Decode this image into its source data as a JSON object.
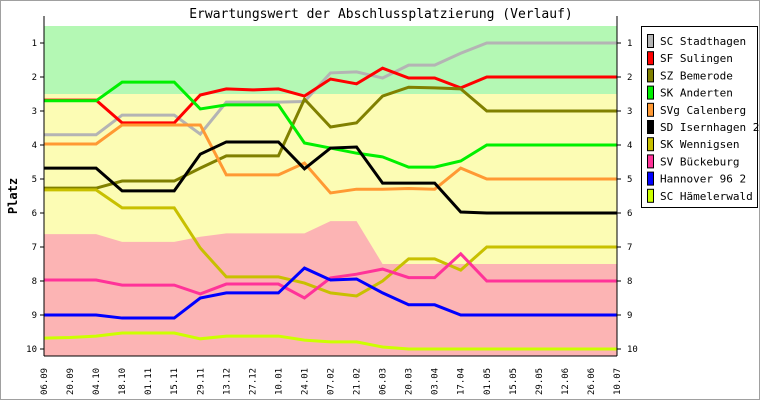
{
  "chart_data": {
    "type": "line",
    "title": "Erwartungswert der Abschlussplatzierung (Verlauf)",
    "xlabel": "",
    "ylabel": "Platz",
    "ylim": [
      1,
      10
    ],
    "y_ticks": [
      "1",
      "2",
      "3",
      "4",
      "5",
      "6",
      "7",
      "8",
      "9",
      "10"
    ],
    "y_inverted": true,
    "legend_position": "right",
    "categories": [
      "06.09",
      "20.09",
      "04.10",
      "18.10",
      "01.11",
      "15.11",
      "29.11",
      "13.12",
      "27.12",
      "10.01",
      "24.01",
      "07.02",
      "21.02",
      "06.03",
      "20.03",
      "03.04",
      "17.04",
      "01.05",
      "15.05",
      "29.05",
      "12.06",
      "26.06",
      "10.07"
    ],
    "zones": {
      "green_upper_bound": 2.5,
      "pink_lower_boundary": [
        6.62,
        6.62,
        6.62,
        6.85,
        6.85,
        6.85,
        6.7,
        6.6,
        6.6,
        6.6,
        6.6,
        6.24,
        6.24,
        7.5,
        7.5,
        7.5,
        7.5,
        7.5,
        7.5,
        7.5,
        7.5,
        7.5,
        7.5
      ],
      "colors": {
        "green": "#b4f8b4",
        "yellow": "#fcfcb4",
        "pink": "#fcb4b4"
      }
    },
    "series": [
      {
        "name": "SC Stadthagen",
        "color": "#b4b4b4",
        "values": [
          3.7,
          3.7,
          3.7,
          3.12,
          3.12,
          3.12,
          3.68,
          2.74,
          2.74,
          2.74,
          2.72,
          1.88,
          1.85,
          2.03,
          1.65,
          1.65,
          1.3,
          1,
          1,
          1,
          1,
          1,
          1
        ]
      },
      {
        "name": "SF Sulingen",
        "color": "#ff0000",
        "values": [
          2.68,
          2.68,
          2.68,
          3.35,
          3.35,
          3.35,
          2.53,
          2.35,
          2.38,
          2.35,
          2.56,
          2.06,
          2.2,
          1.74,
          2.03,
          2.03,
          2.32,
          2,
          2,
          2,
          2,
          2,
          2
        ]
      },
      {
        "name": "SZ Bemerode",
        "color": "#808000",
        "values": [
          5.27,
          5.27,
          5.27,
          5.06,
          5.06,
          5.06,
          4.68,
          4.32,
          4.32,
          4.32,
          2.65,
          3.47,
          3.35,
          2.56,
          2.3,
          2.32,
          2.35,
          3,
          3,
          3,
          3,
          3,
          3
        ]
      },
      {
        "name": "SK Anderten",
        "color": "#00f000",
        "values": [
          2.7,
          2.7,
          2.7,
          2.15,
          2.15,
          2.15,
          2.94,
          2.82,
          2.82,
          2.82,
          3.94,
          4.09,
          4.24,
          4.35,
          4.65,
          4.65,
          4.47,
          4,
          4,
          4,
          4,
          4,
          4
        ]
      },
      {
        "name": "SVg Calenberg",
        "color": "#ff9933",
        "values": [
          3.97,
          3.97,
          3.97,
          3.41,
          3.41,
          3.41,
          3.41,
          4.88,
          4.88,
          4.88,
          4.53,
          5.41,
          5.3,
          5.3,
          5.28,
          5.3,
          4.68,
          5,
          5,
          5,
          5,
          5,
          5
        ]
      },
      {
        "name": "SD Isernhagen 2",
        "color": "#000000",
        "values": [
          4.68,
          4.68,
          4.68,
          5.35,
          5.35,
          5.35,
          4.27,
          3.91,
          3.91,
          3.91,
          4.7,
          4.09,
          4.06,
          5.12,
          5.12,
          5.12,
          5.97,
          6,
          6,
          6,
          6,
          6,
          6
        ]
      },
      {
        "name": "SK Wennigsen",
        "color": "#c8c000",
        "values": [
          5.32,
          5.32,
          5.32,
          5.85,
          5.85,
          5.85,
          7.03,
          7.88,
          7.88,
          7.88,
          8.06,
          8.35,
          8.44,
          8.0,
          7.35,
          7.35,
          7.68,
          7,
          7,
          7,
          7,
          7,
          7
        ]
      },
      {
        "name": "SV Bückeburg",
        "color": "#ff3399",
        "values": [
          7.97,
          7.97,
          7.97,
          8.12,
          8.12,
          8.12,
          8.38,
          8.09,
          8.09,
          8.09,
          8.5,
          7.91,
          7.8,
          7.65,
          7.9,
          7.9,
          7.2,
          8,
          8,
          8,
          8,
          8,
          8
        ]
      },
      {
        "name": "Hannover 96 2",
        "color": "#0000ff",
        "values": [
          9.0,
          9.0,
          9.0,
          9.09,
          9.09,
          9.09,
          8.5,
          8.35,
          8.35,
          8.35,
          7.62,
          7.97,
          7.94,
          8.35,
          8.7,
          8.7,
          9.0,
          9,
          9,
          9,
          9,
          9,
          9
        ]
      },
      {
        "name": "SC Hämelerwald",
        "color": "#ccff00",
        "values": [
          9.68,
          9.66,
          9.62,
          9.53,
          9.53,
          9.53,
          9.7,
          9.62,
          9.62,
          9.62,
          9.74,
          9.79,
          9.79,
          9.94,
          10,
          10,
          10,
          10,
          10,
          10,
          10,
          10,
          10
        ]
      }
    ]
  }
}
